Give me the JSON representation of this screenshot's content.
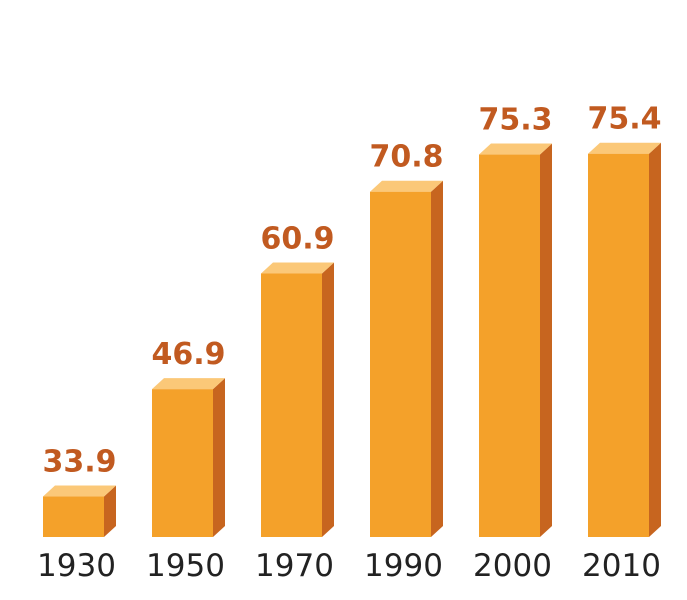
{
  "chart_data": {
    "type": "bar",
    "categories": [
      "1930",
      "1950",
      "1970",
      "1990",
      "2000",
      "2010"
    ],
    "values": [
      33.9,
      46.9,
      60.9,
      70.8,
      75.3,
      75.4
    ],
    "value_labels": [
      "33.9",
      "46.9",
      "60.9",
      "70.8",
      "75.3",
      "75.4"
    ],
    "title": "",
    "xlabel": "",
    "ylabel": "",
    "ylim": [
      29,
      79
    ],
    "grid": false,
    "legend": "none",
    "style": "3d-columns"
  },
  "colors": {
    "bar_front": "#F4A12A",
    "bar_top": "#FBC878",
    "bar_side": "#C7651F",
    "value_label": "#C15A20",
    "category_label": "#222222"
  }
}
